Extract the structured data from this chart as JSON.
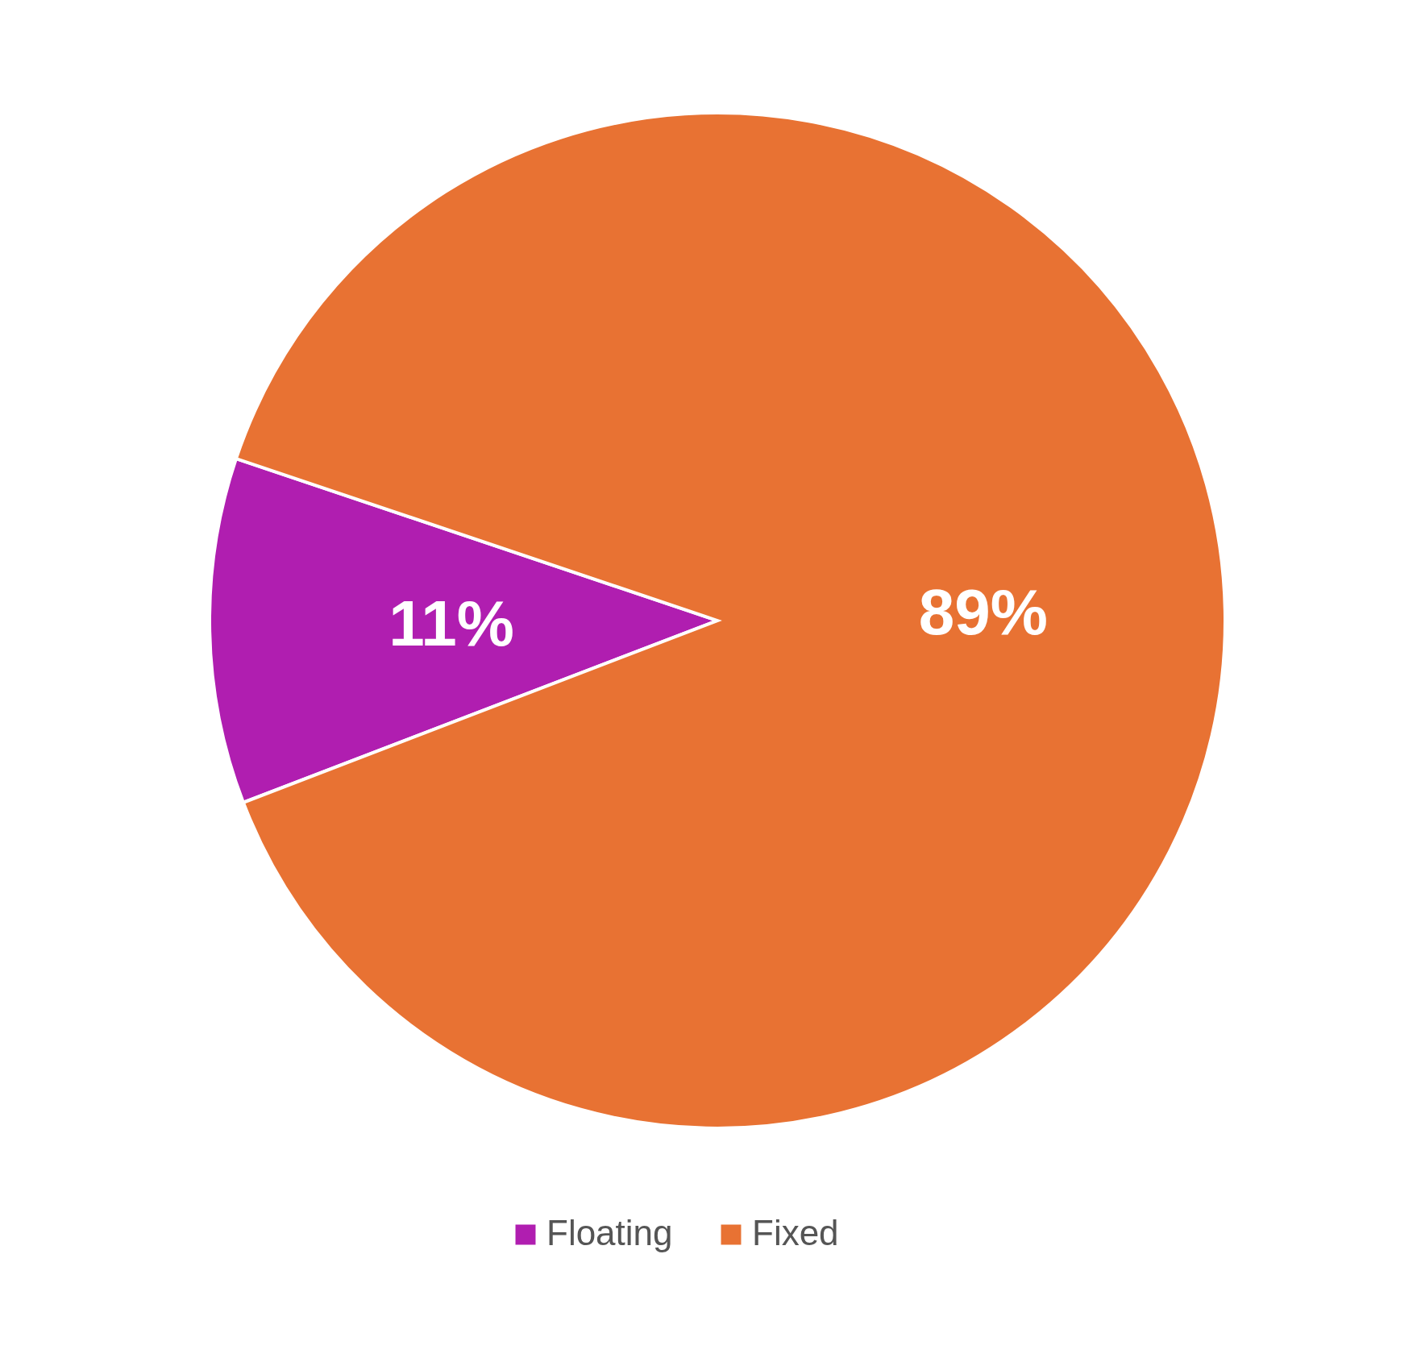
{
  "chart_data": {
    "type": "pie",
    "categories": [
      "Floating",
      "Fixed"
    ],
    "values": [
      11,
      89
    ],
    "colors": [
      "#b01eb0",
      "#e87233"
    ],
    "value_labels": [
      "11%",
      "89%"
    ],
    "legend": "bottom"
  }
}
